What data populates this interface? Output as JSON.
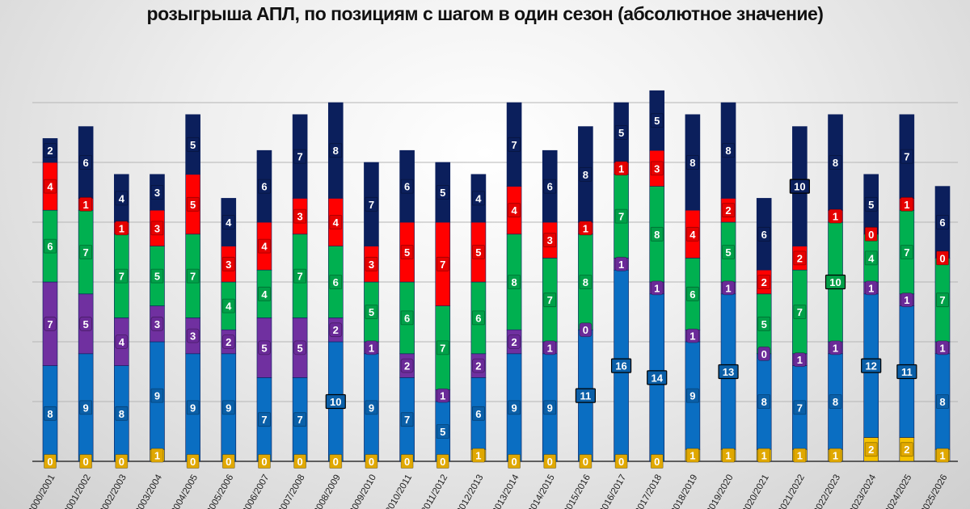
{
  "chart_data": {
    "type": "bar",
    "stacked": true,
    "title": "розыгрыша АПЛ, по позициям с шагом в один сезон (абсолютное значение)",
    "xlabel": "",
    "ylabel": "",
    "ylim": [
      0,
      32
    ],
    "grid": true,
    "grid_step": 5,
    "categories": [
      "2000/2001",
      "2001/2002",
      "2002/2003",
      "2003/2004",
      "2004/2005",
      "2005/2006",
      "2006/2007",
      "2007/2008",
      "2008/2009",
      "2009/2010",
      "2010/2011",
      "2011/2012",
      "2012/2013",
      "2013/2014",
      "2014/2015",
      "2015/2016",
      "2016/2017",
      "2017/2018",
      "2018/2019",
      "2019/2020",
      "2020/2021",
      "2021/2022",
      "2022/2023",
      "2023/2024",
      "2024/2025",
      "2025/2026"
    ],
    "series": [
      {
        "name": "yellow",
        "color": "#f5c200",
        "label_color": "#e0a800",
        "values": [
          0,
          0,
          0,
          1,
          0,
          0,
          0,
          0,
          0,
          0,
          0,
          0,
          1,
          0,
          0,
          0,
          0,
          0,
          1,
          1,
          1,
          1,
          1,
          2,
          2,
          1
        ]
      },
      {
        "name": "blue",
        "color": "#0a6ec2",
        "label_color": "#0a5fa8",
        "values": [
          8,
          9,
          8,
          9,
          9,
          9,
          7,
          7,
          10,
          9,
          7,
          5,
          6,
          9,
          9,
          11,
          16,
          14,
          9,
          13,
          8,
          7,
          8,
          12,
          11,
          8
        ]
      },
      {
        "name": "purple",
        "color": "#7030a0",
        "label_color": "#6a2a98",
        "values": [
          7,
          5,
          4,
          3,
          3,
          2,
          5,
          5,
          2,
          1,
          2,
          1,
          2,
          2,
          1,
          0,
          1,
          1,
          1,
          1,
          0,
          1,
          1,
          1,
          1,
          1
        ]
      },
      {
        "name": "green",
        "color": "#00b050",
        "label_color": "#00a048",
        "values": [
          6,
          7,
          7,
          5,
          7,
          4,
          4,
          7,
          6,
          5,
          6,
          7,
          6,
          8,
          7,
          8,
          7,
          8,
          6,
          5,
          5,
          7,
          10,
          4,
          7,
          7
        ]
      },
      {
        "name": "red",
        "color": "#ff0000",
        "label_color": "#e60000",
        "values": [
          4,
          1,
          1,
          3,
          5,
          3,
          4,
          3,
          4,
          3,
          5,
          7,
          5,
          4,
          3,
          1,
          1,
          3,
          4,
          2,
          2,
          2,
          1,
          0,
          1,
          0
        ]
      },
      {
        "name": "navy",
        "color": "#0b1f5c",
        "label_color": "#0b1f5c",
        "values": [
          2,
          6,
          4,
          3,
          5,
          4,
          6,
          7,
          8,
          7,
          6,
          5,
          4,
          7,
          6,
          8,
          5,
          5,
          8,
          8,
          6,
          10,
          8,
          5,
          7,
          6
        ]
      }
    ]
  }
}
